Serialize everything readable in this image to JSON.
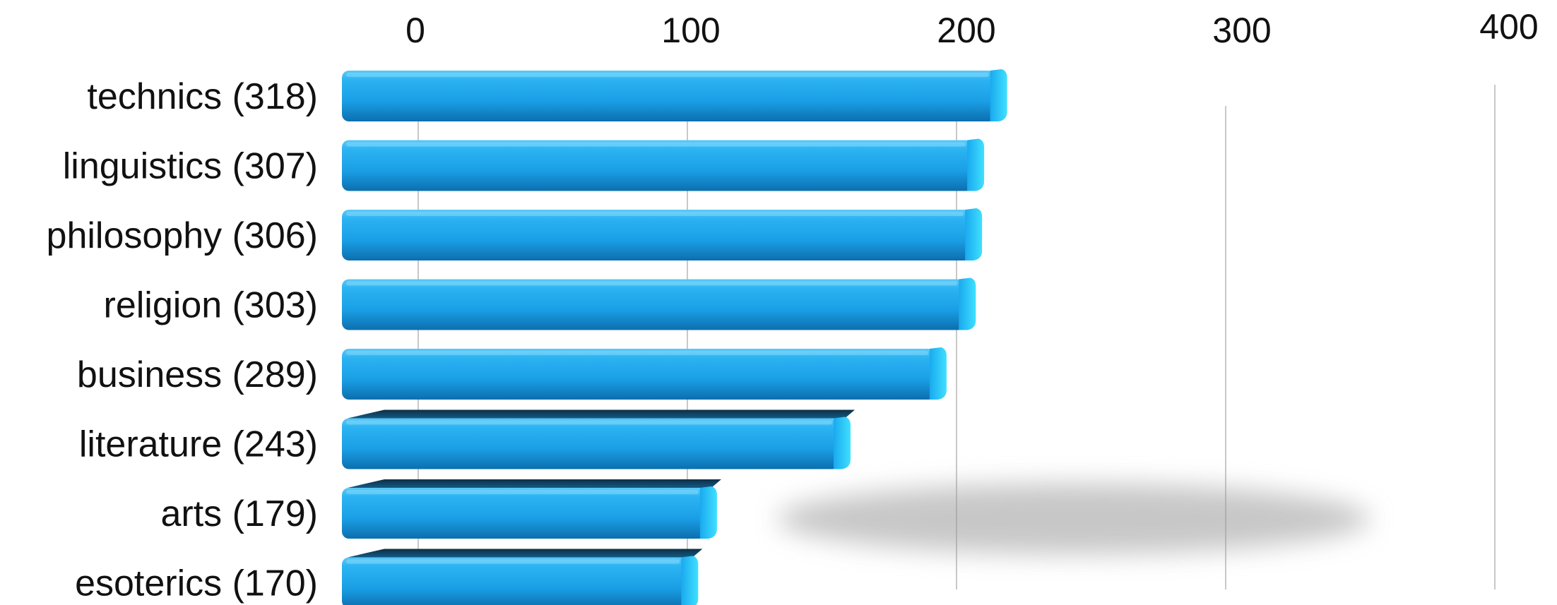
{
  "chart_data": {
    "type": "bar",
    "orientation": "horizontal",
    "style": "3d",
    "categories": [
      "technics (318)",
      "linguistics (307)",
      "philosophy (306)",
      "religion (303)",
      "business (289)",
      "literature (243)",
      "arts (179)",
      "esoterics (170)"
    ],
    "values": [
      318,
      307,
      306,
      303,
      289,
      243,
      179,
      170
    ],
    "xlim": [
      0,
      400
    ],
    "xticks": [
      "0",
      "100",
      "200",
      "300",
      "400"
    ],
    "tick_values": [
      0,
      100,
      200,
      300,
      400
    ],
    "grid": true,
    "legend": "none",
    "bar_color": "#1aa9ef",
    "title": "",
    "xlabel": "",
    "ylabel": ""
  }
}
